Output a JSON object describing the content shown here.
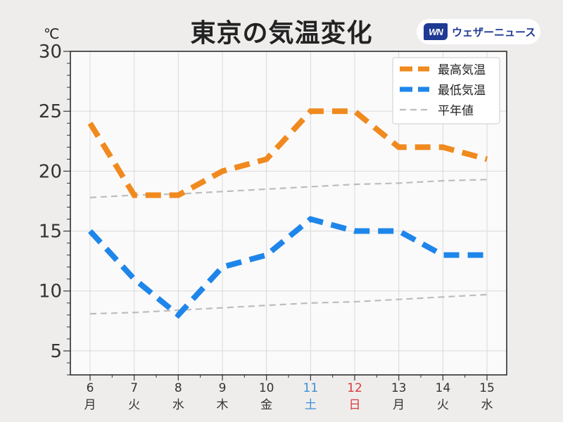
{
  "title": "東京の気温変化",
  "unit": "℃",
  "logo": {
    "mark": "WN",
    "text": "ウェザーニュース"
  },
  "colors": {
    "high": "#f08a1e",
    "low": "#1e86ea",
    "normal": "#bdbdbd",
    "saturday": "#3a8fd8",
    "sunday": "#d93a3a",
    "text": "#333333"
  },
  "chart_data": {
    "type": "line",
    "title": "東京の気温変化",
    "ylabel": "℃",
    "ylim": [
      3,
      30
    ],
    "yticks": [
      5,
      10,
      15,
      20,
      25,
      30
    ],
    "grid": true,
    "legend_position": "top-right",
    "x": [
      6,
      7,
      8,
      9,
      10,
      11,
      12,
      13,
      14,
      15
    ],
    "x_tick_labels": [
      "6",
      "7",
      "8",
      "9",
      "10",
      "11",
      "12",
      "13",
      "14",
      "15"
    ],
    "weekdays": [
      "月",
      "火",
      "水",
      "木",
      "金",
      "土",
      "日",
      "月",
      "火",
      "水"
    ],
    "series": [
      {
        "name": "最高気温",
        "key": "high",
        "style": "thick-dashed",
        "values": [
          24,
          18,
          18,
          20,
          21,
          25,
          25,
          22,
          22,
          21
        ]
      },
      {
        "name": "最低気温",
        "key": "low",
        "style": "thick-dashed",
        "values": [
          15,
          11,
          8,
          12,
          13,
          16,
          15,
          15,
          13,
          13
        ]
      },
      {
        "name": "平年値",
        "key": "normal",
        "style": "thin-dashed",
        "values": [
          17.8,
          18.0,
          18.1,
          18.3,
          18.5,
          18.7,
          18.9,
          19.0,
          19.2,
          19.3
        ]
      },
      {
        "name": "平年値",
        "key": "normal",
        "style": "thin-dashed",
        "legend": false,
        "values": [
          8.1,
          8.2,
          8.4,
          8.6,
          8.8,
          9.0,
          9.1,
          9.3,
          9.5,
          9.7
        ]
      }
    ]
  }
}
